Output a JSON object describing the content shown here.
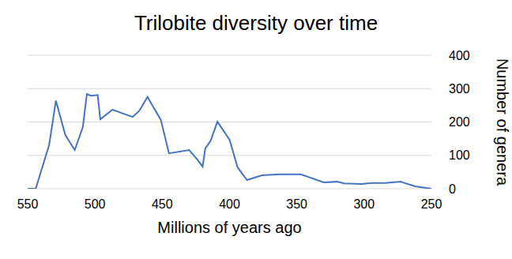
{
  "chart_data": {
    "type": "line",
    "title": "Trilobite diversity over time",
    "x_label": "Millions of years ago",
    "y_label": "Number of genera",
    "x": [
      550,
      544,
      534,
      529,
      522,
      515,
      509,
      506,
      503,
      498,
      496,
      487,
      472,
      467,
      461,
      451,
      445,
      430,
      424,
      420,
      418,
      414,
      409,
      400,
      394,
      387,
      376,
      363,
      347,
      330,
      320,
      315,
      302,
      294,
      284,
      273,
      262,
      250
    ],
    "values": [
      0,
      0,
      132,
      264,
      161,
      116,
      185,
      284,
      279,
      281,
      208,
      237,
      215,
      234,
      275,
      206,
      106,
      116,
      88,
      66,
      121,
      144,
      201,
      147,
      64,
      26,
      40,
      43,
      43,
      19,
      21,
      16,
      14,
      17,
      17,
      21,
      7,
      0
    ],
    "color": "#4472c4",
    "xlim": [
      550,
      250
    ],
    "xticks": [
      550,
      500,
      450,
      400,
      350,
      300,
      250
    ],
    "ylim": [
      0,
      400
    ],
    "yticks": [
      0,
      100,
      200,
      300,
      400
    ],
    "grid": true
  }
}
